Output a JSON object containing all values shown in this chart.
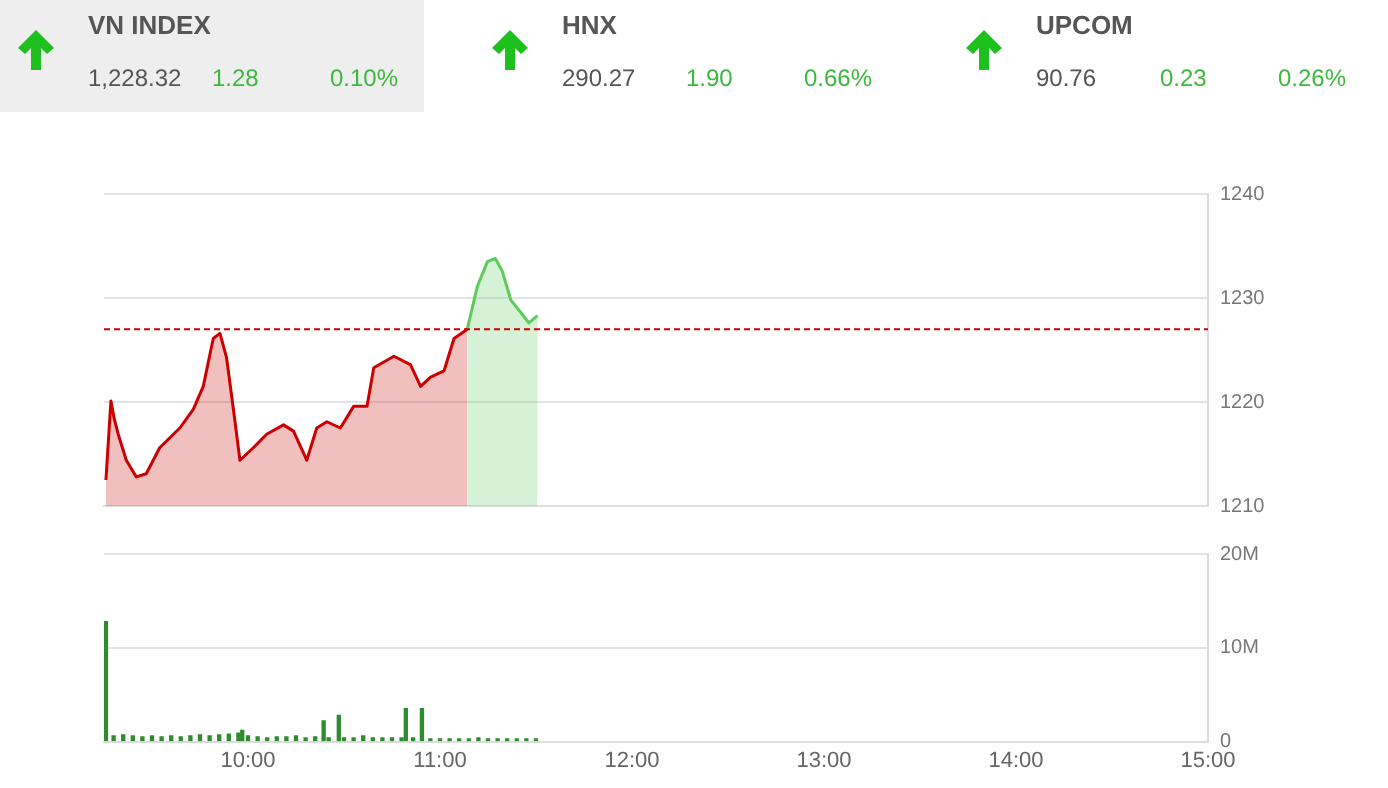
{
  "chart_data": [
    {
      "type": "other",
      "annotations": [
        "VN INDEX",
        "1,228.32",
        "1.28",
        "0.10%",
        "HNX",
        "290.27",
        "1.90",
        "0.66%",
        "UPCOM",
        "90.76",
        "0.23",
        "0.26%"
      ]
    },
    {
      "type": "area",
      "xlim": [
        9.25,
        15
      ],
      "xticks": [
        {
          "value": 10,
          "label": null
        },
        {
          "value": 11,
          "label": null
        },
        {
          "value": 12,
          "label": null
        },
        {
          "value": 13,
          "label": null
        },
        {
          "value": 14,
          "label": null
        },
        {
          "value": 15,
          "label": null
        }
      ],
      "ylim": [
        1210,
        1240
      ],
      "yticks": [
        1210,
        1220,
        1230,
        1240
      ],
      "grid": "y",
      "tick_labels": "y",
      "series": [
        {
          "color": "#cc0000",
          "x": [
            9.26,
            9.286,
            9.303,
            9.324,
            9.366,
            9.418,
            9.47,
            9.54,
            9.645,
            9.715,
            9.767,
            9.819,
            9.854,
            9.888,
            9.924,
            9.958,
            10.028,
            10.097,
            10.185,
            10.237,
            10.306,
            10.358,
            10.411,
            10.481,
            10.551,
            10.62,
            10.655,
            10.76,
            10.846,
            10.899,
            10.951,
            11.021,
            11.073,
            11.142
          ],
          "values": [
            1212.5,
            1220.1,
            1218.4,
            1216.9,
            1214.4,
            1212.8,
            1213.1,
            1215.6,
            1217.5,
            1219.3,
            1221.5,
            1226.1,
            1226.6,
            1224.3,
            1219.3,
            1214.4,
            1215.6,
            1216.9,
            1217.8,
            1217.2,
            1214.4,
            1217.5,
            1218.1,
            1217.5,
            1219.6,
            1219.6,
            1223.3,
            1224.4,
            1223.6,
            1221.5,
            1222.4,
            1223.0,
            1226.1,
            1227.0
          ]
        },
        {
          "color": "#5ccc5c",
          "x": [
            11.142,
            11.194,
            11.247,
            11.288,
            11.324,
            11.369,
            11.421,
            11.463,
            11.508
          ],
          "values": [
            1227.0,
            1231.1,
            1233.5,
            1233.8,
            1232.6,
            1229.8,
            1228.6,
            1227.6,
            1228.3
          ]
        }
      ],
      "ref_lines": [
        {
          "axis": "y",
          "value": 1227,
          "color": "#cc0000",
          "line_style": "dashed"
        }
      ]
    },
    {
      "type": "bar",
      "xlim": [
        9.25,
        15
      ],
      "xticks": [
        {
          "value": 10,
          "label": "10:00"
        },
        {
          "value": 11,
          "label": "11:00"
        },
        {
          "value": 12,
          "label": "12:00"
        },
        {
          "value": 13,
          "label": "13:00"
        },
        {
          "value": 14,
          "label": "14:00"
        },
        {
          "value": 15,
          "label": "15:00"
        }
      ],
      "ylim": [
        0,
        20
      ],
      "yticks": [
        {
          "value": 0,
          "label": "0"
        },
        {
          "value": 10,
          "label": "10M"
        },
        {
          "value": 20,
          "label": "20M"
        }
      ],
      "grid": "y",
      "series": [
        {
          "color": "#2e8b2e",
          "x": [
            9.26,
            9.3,
            9.35,
            9.4,
            9.45,
            9.5,
            9.55,
            9.6,
            9.65,
            9.7,
            9.75,
            9.8,
            9.85,
            9.9,
            9.95,
            9.97,
            10.0,
            10.05,
            10.1,
            10.15,
            10.2,
            10.25,
            10.3,
            10.35,
            10.394,
            10.42,
            10.473,
            10.5,
            10.55,
            10.6,
            10.65,
            10.7,
            10.75,
            10.8,
            10.822,
            10.86,
            10.906,
            10.95,
            11.0,
            11.05,
            11.1,
            11.15,
            11.2,
            11.25,
            11.3,
            11.35,
            11.4,
            11.45,
            11.5
          ],
          "values": [
            12.8,
            0.6,
            0.7,
            0.6,
            0.5,
            0.6,
            0.5,
            0.6,
            0.5,
            0.6,
            0.7,
            0.6,
            0.7,
            0.8,
            0.9,
            1.2,
            0.6,
            0.5,
            0.4,
            0.5,
            0.5,
            0.6,
            0.4,
            0.5,
            2.2,
            0.4,
            2.8,
            0.4,
            0.4,
            0.6,
            0.4,
            0.4,
            0.4,
            0.4,
            3.5,
            0.4,
            3.5,
            0.3,
            0.3,
            0.3,
            0.3,
            0.3,
            0.4,
            0.3,
            0.3,
            0.3,
            0.3,
            0.3,
            0.3
          ]
        }
      ]
    }
  ]
}
